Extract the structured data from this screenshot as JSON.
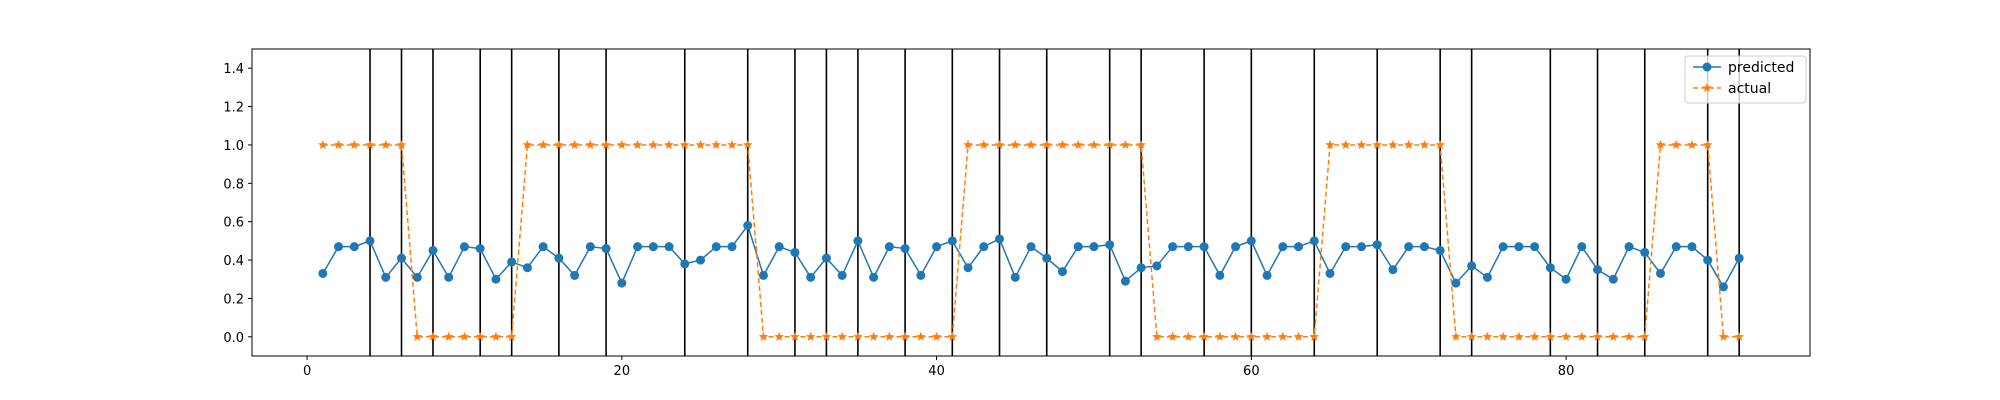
{
  "chart_data": {
    "type": "line",
    "x": [
      1,
      2,
      3,
      4,
      5,
      6,
      7,
      8,
      9,
      10,
      11,
      12,
      13,
      14,
      15,
      16,
      17,
      18,
      19,
      20,
      21,
      22,
      23,
      24,
      25,
      26,
      27,
      28,
      29,
      30,
      31,
      32,
      33,
      34,
      35,
      36,
      37,
      38,
      39,
      40,
      41,
      42,
      43,
      44,
      45,
      46,
      47,
      48,
      49,
      50,
      51,
      52,
      53,
      54,
      55,
      56,
      57,
      58,
      59,
      60,
      61,
      62,
      63,
      64,
      65,
      66,
      67,
      68,
      69,
      70,
      71,
      72,
      73,
      74,
      75,
      76,
      77,
      78,
      79,
      80,
      81,
      82,
      83,
      84,
      85,
      86,
      87,
      88,
      89,
      90,
      91
    ],
    "series": [
      {
        "name": "predicted",
        "color": "#1f77b4",
        "marker": "circle",
        "linestyle": "solid",
        "values": [
          0.33,
          0.47,
          0.47,
          0.5,
          0.31,
          0.41,
          0.31,
          0.45,
          0.31,
          0.47,
          0.46,
          0.3,
          0.39,
          0.36,
          0.47,
          0.41,
          0.32,
          0.47,
          0.46,
          0.28,
          0.47,
          0.47,
          0.47,
          0.38,
          0.4,
          0.47,
          0.47,
          0.58,
          0.32,
          0.47,
          0.44,
          0.31,
          0.41,
          0.32,
          0.5,
          0.31,
          0.47,
          0.46,
          0.32,
          0.47,
          0.5,
          0.36,
          0.47,
          0.51,
          0.31,
          0.47,
          0.41,
          0.34,
          0.47,
          0.47,
          0.48,
          0.29,
          0.36,
          0.37,
          0.47,
          0.47,
          0.47,
          0.32,
          0.47,
          0.5,
          0.32,
          0.47,
          0.47,
          0.5,
          0.33,
          0.47,
          0.47,
          0.48,
          0.35,
          0.47,
          0.47,
          0.45,
          0.28,
          0.37,
          0.31,
          0.47,
          0.47,
          0.47,
          0.36,
          0.3,
          0.47,
          0.35,
          0.3,
          0.47,
          0.44,
          0.33,
          0.47,
          0.47,
          0.4,
          0.26,
          0.41
        ]
      },
      {
        "name": "actual",
        "color": "#ff7f0e",
        "marker": "star",
        "linestyle": "dashed",
        "values": [
          1,
          1,
          1,
          1,
          1,
          1,
          0,
          0,
          0,
          0,
          0,
          0,
          0,
          1,
          1,
          1,
          1,
          1,
          1,
          1,
          1,
          1,
          1,
          1,
          1,
          1,
          1,
          1,
          0,
          0,
          0,
          0,
          0,
          0,
          0,
          0,
          0,
          0,
          0,
          0,
          0,
          1,
          1,
          1,
          1,
          1,
          1,
          1,
          1,
          1,
          1,
          1,
          1,
          0,
          0,
          0,
          0,
          0,
          0,
          0,
          0,
          0,
          0,
          0,
          1,
          1,
          1,
          1,
          1,
          1,
          1,
          1,
          0,
          0,
          0,
          0,
          0,
          0,
          0,
          0,
          0,
          0,
          0,
          0,
          0,
          1,
          1,
          1,
          1,
          0,
          0
        ]
      }
    ],
    "vlines": [
      4,
      6,
      8,
      11,
      13,
      16,
      19,
      24,
      28,
      31,
      33,
      35,
      38,
      41,
      44,
      47,
      51,
      53,
      57,
      60,
      64,
      68,
      72,
      74,
      79,
      82,
      85,
      89,
      91
    ],
    "xlim": [
      -3.5,
      95.5
    ],
    "ylim": [
      -0.1,
      1.5
    ],
    "xticks": [
      0,
      20,
      40,
      60,
      80
    ],
    "yticks": [
      0.0,
      0.2,
      0.4,
      0.6,
      0.8,
      1.0,
      1.2,
      1.4
    ],
    "xtick_labels": [
      "0",
      "20",
      "40",
      "60",
      "80"
    ],
    "ytick_labels": [
      "0.0",
      "0.2",
      "0.4",
      "0.6",
      "0.8",
      "1.0",
      "1.2",
      "1.4"
    ],
    "title": "",
    "xlabel": "",
    "ylabel": "",
    "grid": false,
    "legend": "top-right"
  }
}
